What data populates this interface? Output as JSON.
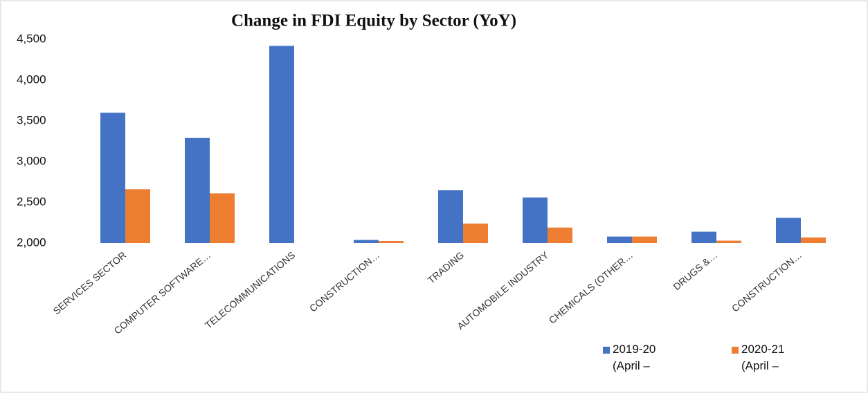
{
  "chart_data": {
    "type": "bar",
    "title": "Change in FDI Equity by Sector (YoY)",
    "categories": [
      "SERVICES SECTOR",
      "COMPUTER SOFTWARE…",
      "TELECOMMUNICATIONS",
      "CONSTRUCTION…",
      "TRADING",
      "AUTOMOBILE INDUSTRY",
      "CHEMICALS (OTHER…",
      "DRUGS &…",
      "CONSTRUCTION…"
    ],
    "series": [
      {
        "name": "2019-20 (April –",
        "color": "#4472c4",
        "values": [
          3600,
          3290,
          4420,
          2040,
          2650,
          2560,
          2080,
          2140,
          2310
        ]
      },
      {
        "name": "2020-21 (April –",
        "color": "#ed7d31",
        "values": [
          2660,
          2610,
          null,
          2025,
          2240,
          2190,
          2080,
          2030,
          2070
        ]
      }
    ],
    "ylim": [
      2000,
      4500
    ],
    "yticks": [
      {
        "value": 2000,
        "label": "2,000"
      },
      {
        "value": 2500,
        "label": "2,500"
      },
      {
        "value": 3000,
        "label": "3,000"
      },
      {
        "value": 3500,
        "label": "3,500"
      },
      {
        "value": 4000,
        "label": "4,000"
      },
      {
        "value": 4500,
        "label": "4,500"
      }
    ]
  }
}
